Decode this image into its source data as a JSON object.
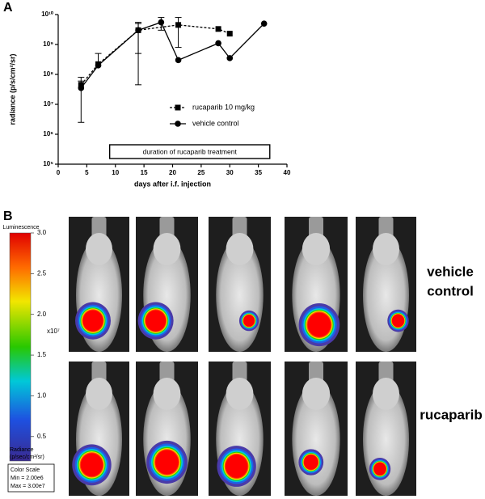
{
  "panel_labels": [
    "A",
    "B"
  ],
  "chart_data": {
    "type": "line",
    "y_label": "radiance (p/s/cm²/sr)",
    "x_label": "days after i.f. injection",
    "annotation": "duration of rucaparib treatment",
    "xlim": [
      0,
      40
    ],
    "xticks": [
      0,
      5,
      10,
      15,
      20,
      25,
      30,
      35,
      40
    ],
    "ylim": [
      100000,
      10000000000
    ],
    "yticks": [
      {
        "value": 100000,
        "label": "10⁵"
      },
      {
        "value": 1000000,
        "label": "10⁶"
      },
      {
        "value": 10000000,
        "label": "10⁷"
      },
      {
        "value": 100000000,
        "label": "10⁸"
      },
      {
        "value": 1000000000,
        "label": "10⁹"
      },
      {
        "value": 10000000000,
        "label": "10¹⁰"
      }
    ],
    "log_y": true,
    "series": [
      {
        "name": "rucaparib 10 mg/kg",
        "color": "#000000",
        "marker": "square",
        "line_style": "dashed",
        "x": [
          4,
          7,
          14,
          21,
          28,
          30
        ],
        "values": [
          45000000,
          220000000,
          3000000000,
          4500000000,
          3300000000,
          2300000000
        ],
        "err_high": [
          80000000,
          500000000,
          5500000000,
          8000000000,
          null,
          null
        ],
        "err_low": [
          null,
          null,
          500000000,
          800000000,
          null,
          null
        ]
      },
      {
        "name": "vehicle control",
        "color": "#000000",
        "marker": "circle",
        "line_style": "solid",
        "x": [
          4,
          7,
          14,
          18,
          21,
          28,
          30,
          36
        ],
        "values": [
          35000000,
          200000000,
          3000000000,
          5500000000,
          300000000,
          1100000000,
          350000000,
          5000000000
        ],
        "err_high": [
          60000000,
          null,
          5000000000,
          8000000000,
          null,
          null,
          null,
          null
        ],
        "err_low": [
          2500000,
          null,
          45000000,
          3000000000,
          null,
          null,
          null,
          null
        ]
      }
    ]
  },
  "colorbar": {
    "title": "Luminescence",
    "ticks": [
      {
        "value": 3,
        "label": "3.0"
      },
      {
        "value": 2.5,
        "label": "2.5"
      },
      {
        "value": 2,
        "label": "2.0"
      },
      {
        "value": 1.5,
        "label": "1.5"
      },
      {
        "value": 1,
        "label": "1.0"
      },
      {
        "value": 0.5,
        "label": "0.5"
      }
    ],
    "range": [
      0.2,
      3
    ],
    "multiplier": "x10⁷",
    "unit_lines": [
      "Radiance",
      "(p/sec/cm²/sr)"
    ],
    "scale_lines": [
      "Color Scale",
      "Min = 2.00e6",
      "Max = 3.00e7"
    ]
  },
  "row_labels": [
    [
      "vehicle",
      "control"
    ],
    [
      "rucaparib"
    ]
  ]
}
